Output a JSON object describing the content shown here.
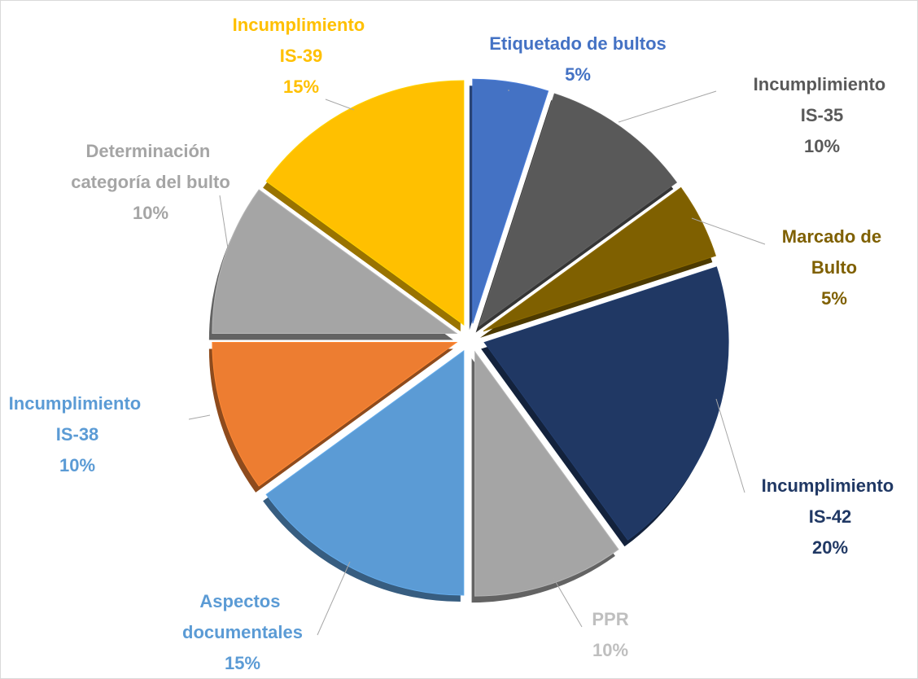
{
  "chart_data": {
    "type": "pie",
    "categories": [
      "Etiquetado de bultos",
      "Incumplimiento IS-35",
      "Marcado de Bulto",
      "Incumplimiento IS-42",
      "PPR",
      "Aspectos documentales",
      "Incumplimiento IS-38",
      "Determinación categoría del bulto",
      "Incumplimiento IS-39"
    ],
    "values": [
      5,
      10,
      5,
      20,
      10,
      15,
      10,
      10,
      15
    ],
    "value_labels": [
      "5%",
      "10%",
      "5%",
      "20%",
      "10%",
      "15%",
      "10%",
      "10%",
      "15%"
    ],
    "colors": [
      "#4472c4",
      "#595959",
      "#7f6000",
      "#203864",
      "#a5a5a5",
      "#5b9bd5",
      "#ed7d31",
      "#a5a5a5",
      "#ffc000"
    ],
    "label_colors": [
      "#4472c4",
      "#595959",
      "#7f6000",
      "#203864",
      "#bfbfbf",
      "#5b9bd5",
      "#5b9bd5",
      "#a5a5a5",
      "#ffc000"
    ]
  }
}
